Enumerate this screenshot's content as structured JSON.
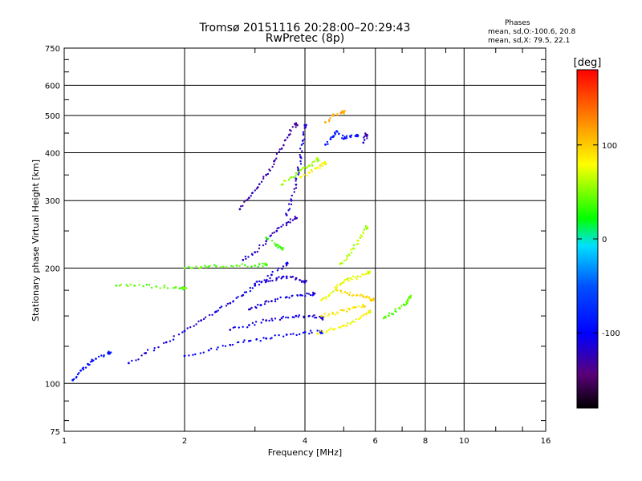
{
  "chart_data": {
    "type": "scatter",
    "title": "Tromsø 20151116 20:28:00–20:29:43",
    "subtitle": "RwPretec (8p)",
    "xlabel": "Frequency [MHz]",
    "ylabel": "Stationary phase Virtual Height [km]",
    "x_scale": "log",
    "y_scale": "log",
    "xlim": [
      1,
      16
    ],
    "ylim": [
      75,
      750
    ],
    "x_ticks": [
      "1",
      "2",
      "4",
      "6",
      "8",
      "10",
      "16"
    ],
    "x_tick_values": [
      1,
      2,
      4,
      6,
      8,
      10,
      16
    ],
    "y_ticks": [
      "75",
      "100",
      "200",
      "300",
      "400",
      "500",
      "600",
      "750"
    ],
    "y_tick_values": [
      75,
      100,
      200,
      300,
      400,
      500,
      600,
      750
    ],
    "grid": true,
    "stats": {
      "heading": "Phases",
      "o_line": "mean, sd,O:-100.6, 20.8",
      "x_line": "mean, sd,X:  79.5, 22.1"
    },
    "colorbar": {
      "label": "[deg]",
      "range": [
        -180,
        180
      ],
      "ticks": [
        "100",
        "0",
        "-100"
      ],
      "tick_values": [
        100,
        0,
        -100
      ]
    },
    "traces": [
      {
        "phase": -110,
        "points": [
          [
            1.45,
            113
          ],
          [
            1.6,
            120
          ],
          [
            1.8,
            128
          ],
          [
            2.0,
            137
          ],
          [
            2.2,
            146
          ],
          [
            2.4,
            154
          ],
          [
            2.6,
            162
          ],
          [
            2.8,
            170
          ],
          [
            3.0,
            180
          ],
          [
            3.3,
            192
          ],
          [
            3.6,
            205
          ]
        ]
      },
      {
        "phase": -100,
        "points": [
          [
            2.0,
            118
          ],
          [
            2.3,
            122
          ],
          [
            2.6,
            126
          ],
          [
            2.9,
            129
          ],
          [
            3.2,
            131
          ],
          [
            3.6,
            134
          ],
          [
            4.0,
            136
          ],
          [
            4.4,
            136
          ]
        ]
      },
      {
        "phase": -110,
        "points": [
          [
            2.6,
            138
          ],
          [
            2.9,
            142
          ],
          [
            3.2,
            146
          ],
          [
            3.5,
            148
          ],
          [
            3.8,
            150
          ],
          [
            4.1,
            150
          ],
          [
            4.4,
            148
          ]
        ]
      },
      {
        "phase": -112,
        "points": [
          [
            2.9,
            156
          ],
          [
            3.1,
            160
          ],
          [
            3.3,
            164
          ],
          [
            3.6,
            168
          ],
          [
            3.9,
            170
          ],
          [
            4.2,
            171
          ]
        ]
      },
      {
        "phase": -115,
        "points": [
          [
            3.0,
            182
          ],
          [
            3.2,
            185
          ],
          [
            3.4,
            188
          ],
          [
            3.6,
            190
          ],
          [
            3.8,
            188
          ],
          [
            4.0,
            184
          ]
        ]
      },
      {
        "phase": -120,
        "points": [
          [
            2.8,
            210
          ],
          [
            3.0,
            220
          ],
          [
            3.2,
            235
          ],
          [
            3.4,
            250
          ],
          [
            3.6,
            262
          ],
          [
            3.8,
            270
          ]
        ]
      },
      {
        "phase": -130,
        "points": [
          [
            2.75,
            285
          ],
          [
            2.9,
            305
          ],
          [
            3.05,
            325
          ],
          [
            3.2,
            350
          ],
          [
            3.35,
            380
          ],
          [
            3.5,
            410
          ],
          [
            3.65,
            445
          ],
          [
            3.8,
            475
          ]
        ]
      },
      {
        "phase": -115,
        "points": [
          [
            3.6,
            275
          ],
          [
            3.7,
            300
          ],
          [
            3.8,
            330
          ],
          [
            3.85,
            360
          ],
          [
            3.9,
            390
          ],
          [
            3.95,
            430
          ],
          [
            4.0,
            470
          ]
        ]
      },
      {
        "phase": -90,
        "points": [
          [
            4.5,
            420
          ],
          [
            4.7,
            440
          ],
          [
            4.8,
            455
          ],
          [
            5.0,
            435
          ],
          [
            5.2,
            440
          ],
          [
            5.4,
            445
          ]
        ]
      },
      {
        "phase": 75,
        "points": [
          [
            4.4,
            165
          ],
          [
            4.6,
            170
          ],
          [
            4.8,
            178
          ],
          [
            5.0,
            184
          ],
          [
            5.2,
            188
          ],
          [
            5.5,
            190
          ],
          [
            5.8,
            195
          ]
        ]
      },
      {
        "phase": 80,
        "points": [
          [
            4.3,
            135
          ],
          [
            4.6,
            138
          ],
          [
            4.9,
            140
          ],
          [
            5.2,
            143
          ],
          [
            5.5,
            148
          ],
          [
            5.8,
            154
          ]
        ]
      },
      {
        "phase": 90,
        "points": [
          [
            4.4,
            150
          ],
          [
            4.7,
            152
          ],
          [
            5.0,
            155
          ],
          [
            5.3,
            158
          ],
          [
            5.6,
            160
          ]
        ]
      },
      {
        "phase": 95,
        "points": [
          [
            4.8,
            175
          ],
          [
            5.1,
            172
          ],
          [
            5.4,
            170
          ],
          [
            5.7,
            168
          ],
          [
            5.9,
            165
          ]
        ]
      },
      {
        "phase": 60,
        "points": [
          [
            4.9,
            205
          ],
          [
            5.1,
            215
          ],
          [
            5.3,
            225
          ],
          [
            5.5,
            240
          ],
          [
            5.7,
            255
          ]
        ]
      },
      {
        "phase": 40,
        "points": [
          [
            6.3,
            148
          ],
          [
            6.6,
            152
          ],
          [
            6.9,
            157
          ],
          [
            7.2,
            162
          ],
          [
            7.3,
            168
          ]
        ]
      },
      {
        "phase": 40,
        "points": [
          [
            1.35,
            180
          ],
          [
            1.5,
            180
          ],
          [
            1.7,
            179
          ],
          [
            1.9,
            178
          ],
          [
            2.0,
            177
          ]
        ]
      },
      {
        "phase": 40,
        "points": [
          [
            2.0,
            200
          ],
          [
            2.2,
            201
          ],
          [
            2.4,
            202
          ],
          [
            2.7,
            203
          ],
          [
            3.0,
            203
          ],
          [
            3.2,
            204
          ]
        ]
      },
      {
        "phase": 55,
        "points": [
          [
            3.5,
            330
          ],
          [
            3.7,
            345
          ],
          [
            3.9,
            360
          ],
          [
            4.1,
            370
          ],
          [
            4.3,
            385
          ]
        ]
      },
      {
        "phase": 80,
        "points": [
          [
            3.9,
            345
          ],
          [
            4.1,
            355
          ],
          [
            4.3,
            365
          ],
          [
            4.5,
            375
          ]
        ]
      },
      {
        "phase": 30,
        "points": [
          [
            3.2,
            240
          ],
          [
            3.4,
            230
          ],
          [
            3.5,
            225
          ]
        ]
      },
      {
        "phase": -95,
        "points": [
          [
            1.05,
            102
          ],
          [
            1.1,
            108
          ],
          [
            1.15,
            112
          ],
          [
            1.2,
            116
          ],
          [
            1.3,
            120
          ]
        ]
      },
      {
        "phase": 110,
        "points": [
          [
            4.5,
            480
          ],
          [
            4.7,
            500
          ],
          [
            5.0,
            510
          ]
        ]
      },
      {
        "phase": -120,
        "points": [
          [
            5.6,
            425
          ],
          [
            5.7,
            445
          ]
        ]
      }
    ]
  }
}
